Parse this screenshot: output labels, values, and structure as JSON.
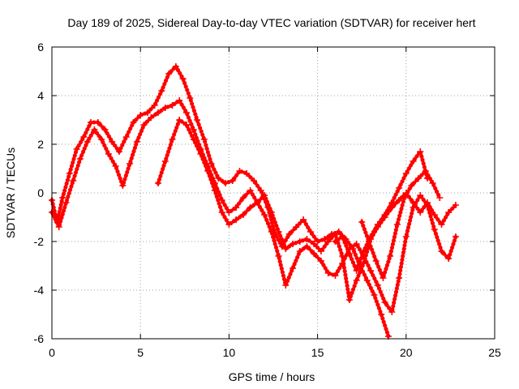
{
  "chart_data": {
    "type": "scatter",
    "title": "Day 189 of 2025, Sidereal Day-to-day VTEC variation (SDTVAR) for receiver hert",
    "xlabel": "GPS time / hours",
    "ylabel": "SDTVAR / TECUs",
    "xlim": [
      0,
      25
    ],
    "ylim": [
      -6,
      6
    ],
    "xticks": [
      0,
      5,
      10,
      15,
      20,
      25
    ],
    "yticks": [
      -6,
      -4,
      -2,
      0,
      2,
      4,
      6
    ],
    "grid": true,
    "marker": "plus",
    "color": "#ff0000",
    "series": [
      {
        "name": "track-1",
        "x": [
          0.0,
          0.3,
          0.6,
          1.0,
          1.4,
          1.8,
          2.2,
          2.6,
          3.0,
          3.4,
          3.8,
          4.2,
          4.6,
          5.0,
          5.4,
          5.8,
          6.2,
          6.6,
          7.0,
          7.4,
          7.8,
          8.2,
          8.6,
          9.0,
          9.4,
          9.8,
          10.2,
          10.6,
          11.0,
          11.4,
          11.8,
          12.2,
          12.6,
          13.0,
          13.4,
          13.8,
          14.2,
          14.6,
          15.0,
          15.4,
          15.8,
          16.2,
          16.6,
          17.0,
          17.4,
          17.8,
          18.2,
          18.6,
          19.0
        ],
        "y": [
          -0.3,
          -1.2,
          -0.2,
          0.8,
          1.8,
          2.3,
          2.9,
          2.9,
          2.6,
          2.1,
          1.7,
          2.3,
          2.9,
          3.2,
          3.3,
          3.6,
          4.2,
          4.9,
          5.2,
          4.7,
          3.9,
          3.0,
          2.2,
          1.2,
          0.6,
          0.4,
          0.5,
          0.9,
          0.8,
          0.5,
          0.1,
          -0.6,
          -1.7,
          -2.2,
          -1.7,
          -1.4,
          -1.1,
          -1.6,
          -2.0,
          -1.9,
          -1.7,
          -1.6,
          -1.9,
          -2.3,
          -3.0,
          -3.6,
          -4.2,
          -5.0,
          -5.9
        ]
      },
      {
        "name": "track-2",
        "x": [
          0.0,
          0.4,
          0.8,
          1.2,
          1.6,
          2.0,
          2.4,
          2.8,
          3.2,
          3.6,
          4.0,
          4.4,
          4.8,
          5.2,
          5.6,
          6.0,
          6.4,
          6.8,
          7.2,
          7.6,
          8.0,
          8.4,
          8.8,
          9.2,
          9.6,
          10.0,
          10.4,
          10.8,
          11.2,
          11.6,
          12.0,
          12.4,
          12.8,
          13.2,
          13.6,
          14.0,
          14.4,
          14.8,
          15.2,
          15.6,
          16.0,
          16.4,
          16.8,
          17.2,
          17.6,
          18.0,
          18.4,
          18.8,
          19.2,
          19.6,
          20.0,
          20.4,
          20.8,
          21.2,
          21.6,
          22.0,
          22.4,
          22.8
        ],
        "y": [
          -0.8,
          -1.4,
          -0.4,
          0.5,
          1.4,
          2.1,
          2.6,
          2.2,
          1.6,
          1.1,
          0.3,
          1.2,
          2.1,
          2.8,
          3.1,
          3.3,
          3.5,
          3.6,
          3.8,
          3.3,
          2.6,
          1.8,
          1.1,
          0.4,
          -0.3,
          -0.8,
          -0.6,
          -0.2,
          0.1,
          -0.4,
          -0.9,
          -1.6,
          -2.6,
          -3.8,
          -3.1,
          -2.4,
          -2.2,
          -2.5,
          -2.8,
          -3.3,
          -3.4,
          -2.9,
          -2.3,
          -2.1,
          -2.6,
          -3.2,
          -3.8,
          -4.5,
          -4.9,
          -3.5,
          -1.8,
          -0.6,
          -0.1,
          -0.5,
          -1.5,
          -2.4,
          -2.7,
          -1.8
        ]
      },
      {
        "name": "track-3",
        "x": [
          6.0,
          6.4,
          6.8,
          7.2,
          7.6,
          8.0,
          8.4,
          8.8,
          9.2,
          9.6,
          10.0,
          10.4,
          10.8,
          11.2,
          11.6,
          12.0,
          12.4,
          12.8,
          13.2,
          13.6,
          14.0,
          14.4,
          14.8,
          15.2,
          15.6,
          16.0,
          16.4,
          16.8,
          17.2,
          17.6,
          18.0,
          18.4,
          18.8,
          19.2,
          19.6,
          20.0,
          20.4,
          20.8,
          21.2,
          21.6,
          22.0,
          22.4,
          22.8
        ],
        "y": [
          0.4,
          1.3,
          2.2,
          3.0,
          2.8,
          2.2,
          1.6,
          0.9,
          0.1,
          -0.8,
          -1.3,
          -1.1,
          -0.9,
          -0.6,
          -0.4,
          -0.1,
          -0.8,
          -1.6,
          -2.3,
          -2.1,
          -2.0,
          -1.9,
          -2.1,
          -2.4,
          -2.0,
          -1.7,
          -2.6,
          -4.4,
          -3.6,
          -2.9,
          -1.9,
          -1.4,
          -1.0,
          -0.6,
          -0.3,
          0.0,
          -0.4,
          -0.8,
          -0.4,
          -0.9,
          -1.3,
          -0.8,
          -0.5
        ]
      },
      {
        "name": "track-4",
        "x": [
          16.0,
          16.4,
          16.8,
          17.2,
          17.6,
          18.0,
          18.4,
          18.8,
          19.2,
          19.6,
          20.0,
          20.4,
          20.8,
          21.2
        ],
        "y": [
          -2.0,
          -1.8,
          -2.5,
          -3.2,
          -2.4,
          -1.8,
          -1.3,
          -0.9,
          -0.4,
          0.2,
          0.8,
          1.3,
          1.7,
          0.6
        ]
      },
      {
        "name": "track-5",
        "x": [
          17.5,
          17.9,
          18.3,
          18.7,
          19.1,
          19.5,
          19.9,
          20.3,
          20.7,
          21.1,
          21.5,
          21.9
        ],
        "y": [
          -1.2,
          -2.0,
          -2.8,
          -3.5,
          -2.6,
          -1.3,
          -0.2,
          0.3,
          0.6,
          0.9,
          0.4,
          -0.2
        ]
      }
    ]
  }
}
